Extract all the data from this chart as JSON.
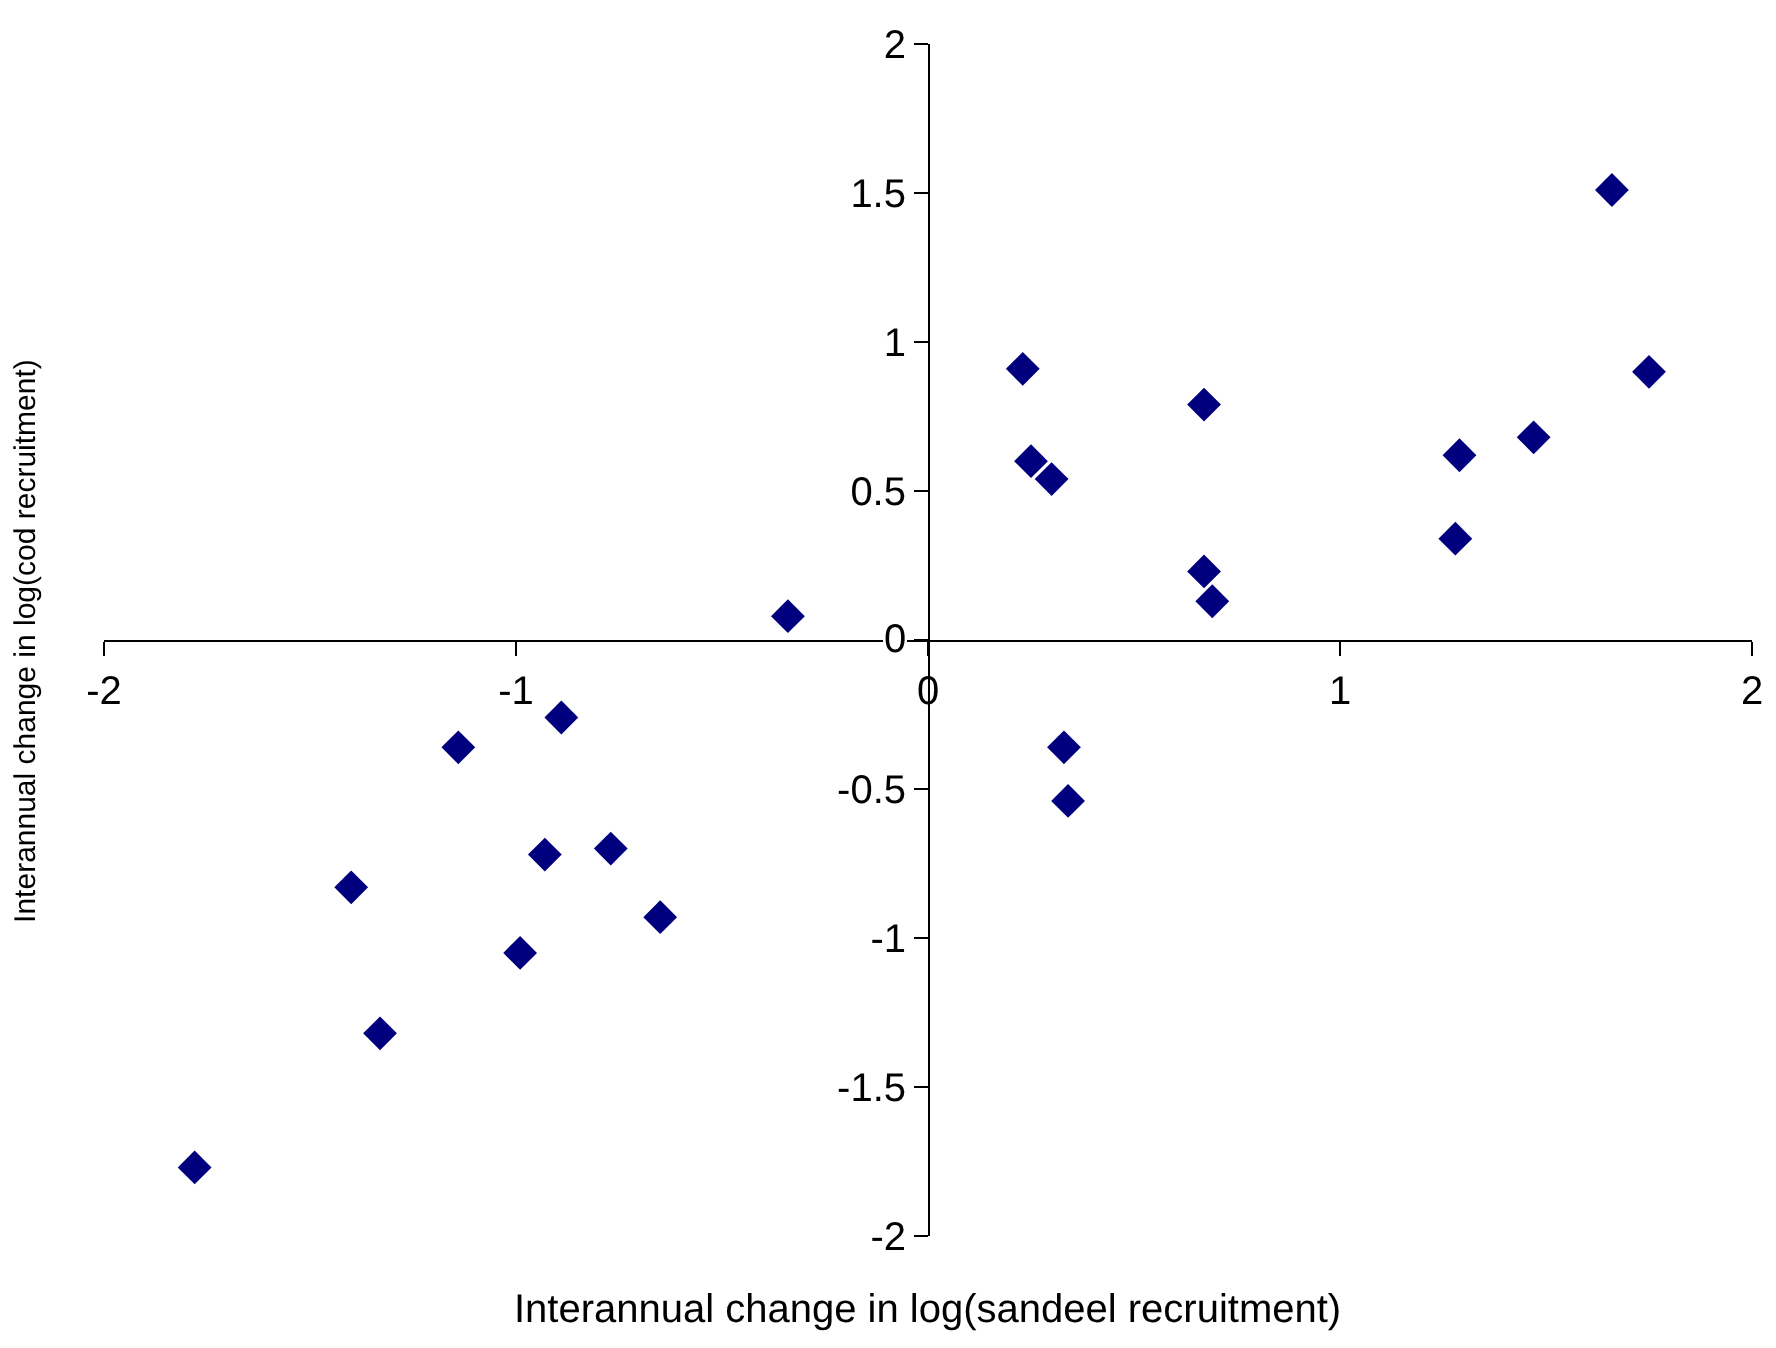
{
  "chart_data": {
    "type": "scatter",
    "xlabel": "Interannual change in log(sandeel recruitment)",
    "ylabel": "Interannual change in log(cod recruitment)",
    "x": [
      -1.78,
      -1.4,
      -1.33,
      -1.14,
      -0.99,
      -0.93,
      -0.89,
      -0.77,
      -0.65,
      -0.34,
      0.23,
      0.25,
      0.3,
      0.34,
      0.33,
      0.67,
      0.67,
      0.69,
      1.29,
      1.28,
      1.47,
      1.66,
      1.75
    ],
    "series": [
      {
        "color": "#00007f",
        "values": [
          -1.77,
          -0.83,
          -1.32,
          -0.36,
          -1.05,
          -0.72,
          -0.26,
          -0.7,
          -0.93,
          0.08,
          0.91,
          0.6,
          0.54,
          -0.54,
          -0.36,
          0.79,
          0.23,
          0.13,
          0.62,
          0.34,
          0.68,
          1.51,
          0.9
        ]
      }
    ],
    "xlim": [
      -2,
      2
    ],
    "ylim": [
      -2,
      2
    ],
    "xticks": [
      -2,
      -1,
      0,
      1,
      2
    ],
    "yticks": [
      -2,
      -1.5,
      -1,
      -0.5,
      0,
      0.5,
      1,
      1.5,
      2
    ],
    "marker": "diamond"
  }
}
